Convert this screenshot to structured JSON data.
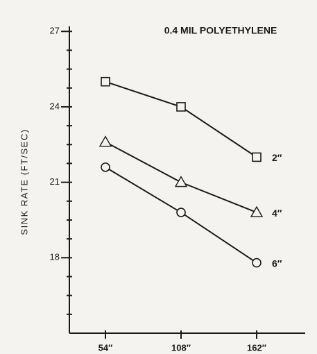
{
  "chart_data": {
    "type": "line",
    "title": "0.4 MIL POLYETHYLENE",
    "y_label": "SINK RATE (FT/SEC)",
    "categories": [
      "54″",
      "108″",
      "162″"
    ],
    "ylim": [
      15,
      27.2
    ],
    "yticks": [
      18,
      21,
      24,
      27
    ],
    "yticks_minor": [
      15.75,
      16.5,
      17.25,
      18.75,
      19.5,
      20.25,
      21.75,
      22.5,
      23.25,
      24.75,
      25.5,
      26.25
    ],
    "series": [
      {
        "name": "2″",
        "color": "#1a1a1a",
        "marker": "square",
        "values": [
          25.0,
          24.0,
          22.0
        ]
      },
      {
        "name": "4″",
        "color": "#1a1a1a",
        "marker": "triangle",
        "values": [
          22.6,
          21.0,
          19.8
        ]
      },
      {
        "name": "6″",
        "color": "#1a1a1a",
        "marker": "circle",
        "values": [
          21.6,
          19.8,
          17.8
        ]
      }
    ]
  }
}
